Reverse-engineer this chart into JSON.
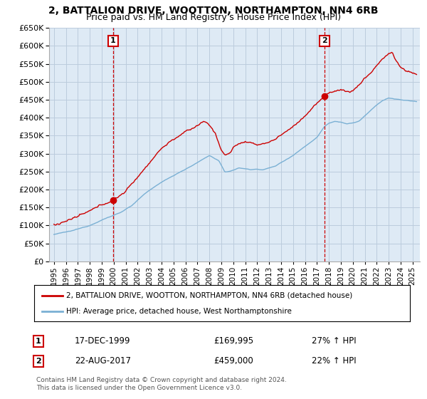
{
  "title": "2, BATTALION DRIVE, WOOTTON, NORTHAMPTON, NN4 6RB",
  "subtitle": "Price paid vs. HM Land Registry's House Price Index (HPI)",
  "ylim": [
    0,
    650000
  ],
  "yticks": [
    0,
    50000,
    100000,
    150000,
    200000,
    250000,
    300000,
    350000,
    400000,
    450000,
    500000,
    550000,
    600000,
    650000
  ],
  "line_color_red": "#cc0000",
  "line_color_blue": "#7ab0d4",
  "marker_box_color": "#cc0000",
  "plot_bg_color": "#deeaf5",
  "legend_label_red": "2, BATTALION DRIVE, WOOTTON, NORTHAMPTON, NN4 6RB (detached house)",
  "legend_label_blue": "HPI: Average price, detached house, West Northamptonshire",
  "sale1_date": "17-DEC-1999",
  "sale1_price": "£169,995",
  "sale1_hpi": "27% ↑ HPI",
  "sale1_year": 1999.96,
  "sale1_value": 169995,
  "sale2_date": "22-AUG-2017",
  "sale2_price": "£459,000",
  "sale2_hpi": "22% ↑ HPI",
  "sale2_year": 2017.64,
  "sale2_value": 459000,
  "footnote": "Contains HM Land Registry data © Crown copyright and database right 2024.\nThis data is licensed under the Open Government Licence v3.0.",
  "bg_color": "#ffffff",
  "grid_color": "#bbccdd",
  "title_fontsize": 10,
  "subtitle_fontsize": 9
}
